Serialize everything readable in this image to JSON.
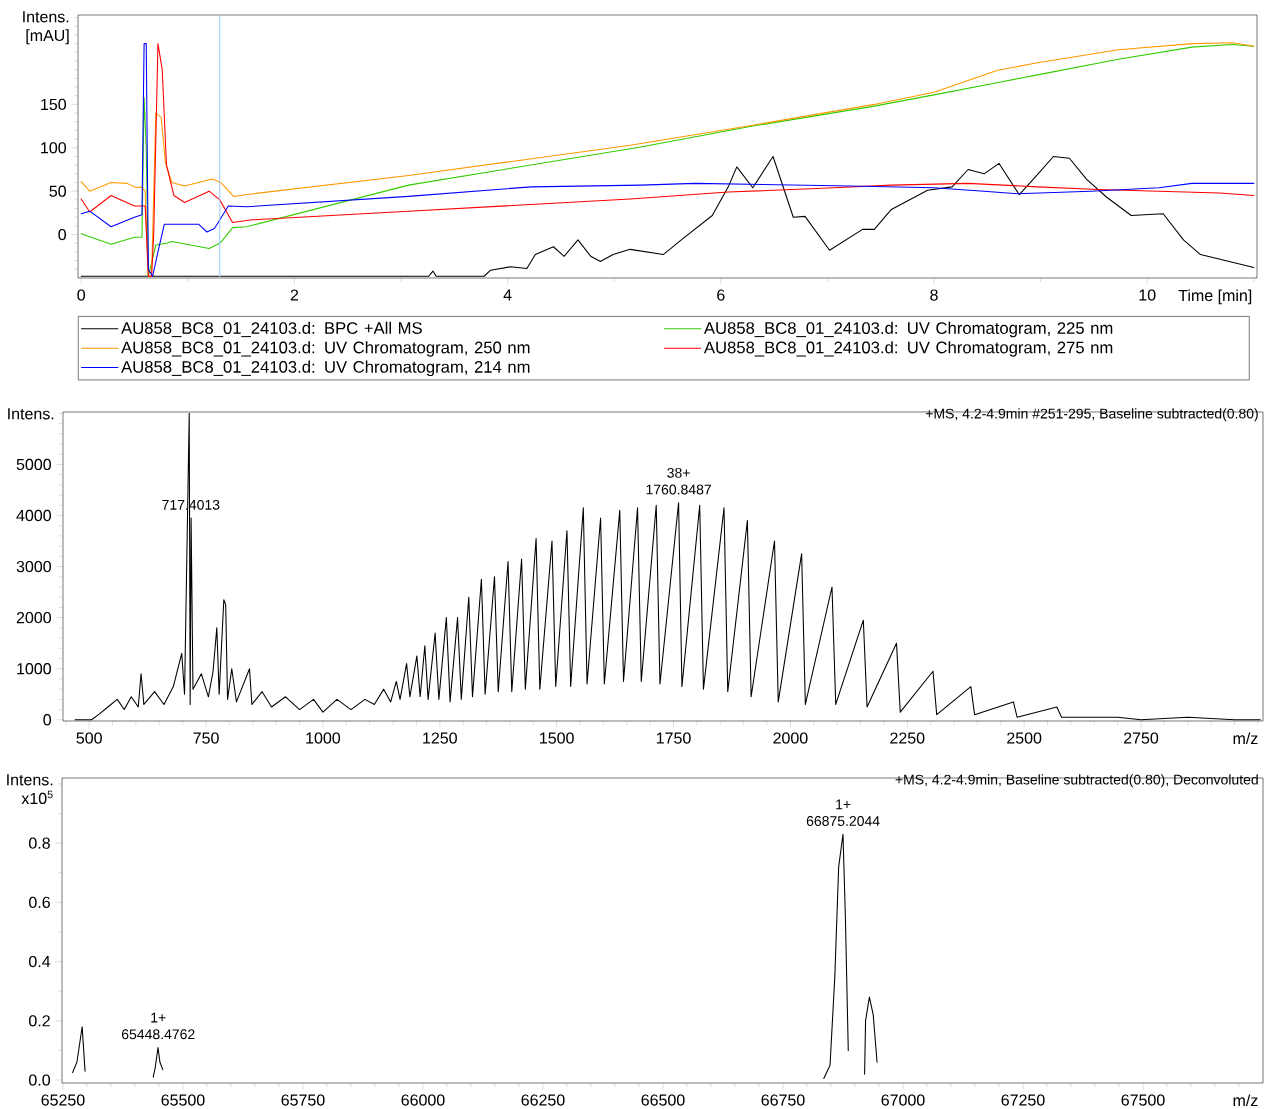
{
  "chart_data": [
    {
      "type": "line",
      "xlabel": "Time [min]",
      "ylabel": "Intens. [mAU]",
      "xlim": [
        -0.03,
        11.03
      ],
      "ylim": [
        -50,
        253
      ],
      "xticks": [
        0,
        {
          "value": 1,
          "label": null
        },
        2,
        {
          "value": 3,
          "label": null
        },
        4,
        {
          "value": 5,
          "label": null
        },
        6,
        {
          "value": 7,
          "label": null
        },
        8,
        {
          "value": 9,
          "label": null
        },
        10,
        {
          "value": 11,
          "label": null
        }
      ],
      "yticks": [
        {
          "value": -40,
          "label": null
        },
        {
          "value": -30,
          "label": null
        },
        {
          "value": -20,
          "label": null
        },
        {
          "value": -10,
          "label": null
        },
        0,
        {
          "value": 10,
          "label": null
        },
        {
          "value": 20,
          "label": null
        },
        {
          "value": 30,
          "label": null
        },
        {
          "value": 40,
          "label": null
        },
        50,
        {
          "value": 60,
          "label": null
        },
        {
          "value": 70,
          "label": null
        },
        {
          "value": 80,
          "label": null
        },
        {
          "value": 90,
          "label": null
        },
        100,
        {
          "value": 110,
          "label": null
        },
        {
          "value": 120,
          "label": null
        },
        {
          "value": 130,
          "label": null
        },
        {
          "value": 140,
          "label": null
        },
        150,
        {
          "value": 160,
          "label": null
        },
        {
          "value": 170,
          "label": null
        },
        {
          "value": 180,
          "label": null
        },
        {
          "value": 190,
          "label": null
        },
        {
          "value": 200,
          "label": null
        },
        {
          "value": 210,
          "label": null
        },
        {
          "value": 220,
          "label": null
        },
        {
          "value": 230,
          "label": null
        },
        {
          "value": 240,
          "label": null
        },
        {
          "value": 250,
          "label": null
        }
      ],
      "legend": "bottom",
      "ref_lines": [
        {
          "axis": "x",
          "value": 1.3,
          "color": "#99ccff"
        }
      ],
      "series": [
        {
          "name": "AU858_BC8_01_24103.d: BPC +All MS",
          "color": "#000000",
          "x": [
            0,
            3.26,
            3.3,
            3.33,
            3.78,
            3.84,
            4.03,
            4.18,
            4.26,
            4.43,
            4.53,
            4.66,
            4.78,
            4.87,
            4.99,
            5.15,
            5.46,
            5.65,
            5.92,
            6.07,
            6.15,
            6.3,
            6.49,
            6.68,
            6.79,
            7.02,
            7.33,
            7.44,
            7.6,
            7.94,
            8.17,
            8.32,
            8.47,
            8.61,
            8.8,
            8.97,
            9.12,
            9.27,
            9.43,
            9.62,
            9.85,
            10.15,
            10.34,
            10.5,
            11.0
          ],
          "values": [
            -48,
            -48,
            -42,
            -48,
            -48,
            -41,
            -37,
            -39,
            -23,
            -14,
            -25,
            -6,
            -25,
            -31,
            -23,
            -17,
            -23,
            -4,
            22,
            55,
            78,
            54,
            90,
            20,
            21,
            -18,
            6,
            6,
            29,
            51,
            55,
            75,
            70,
            82,
            46,
            69,
            90,
            88,
            64,
            43,
            22,
            24,
            -6,
            -23,
            -38
          ]
        },
        {
          "name": "AU858_BC8_01_24103.d: UV Chromatogram, 225 nm",
          "color": "#33cc00",
          "x": [
            0,
            0.28,
            0.5,
            0.57,
            0.59,
            0.61,
            0.63,
            0.7,
            0.8,
            0.85,
            1.2,
            1.3,
            1.35,
            1.42,
            1.55,
            3.07,
            5.25,
            6.3,
            7.44,
            8,
            8.59,
            8.97,
            9.73,
            10.42,
            10.8,
            11.0
          ],
          "values": [
            1,
            -11,
            -3,
            -3,
            158,
            100,
            -48,
            -12,
            -10,
            -8,
            -16,
            -10,
            -3,
            8,
            9,
            57,
            101,
            125,
            148,
            161,
            175,
            184,
            202,
            216,
            219,
            217
          ]
        },
        {
          "name": "AU858_BC8_01_24103.d: UV Chromatogram, 250 nm",
          "color": "#ff9900",
          "x": [
            0,
            0.08,
            0.28,
            0.43,
            0.52,
            0.56,
            0.6,
            0.63,
            0.66,
            0.7,
            0.75,
            0.79,
            0.85,
            0.97,
            1.23,
            1.31,
            1.43,
            1.54,
            3.07,
            5.15,
            6.3,
            7.44,
            8,
            8.59,
            8.97,
            9.73,
            10.42,
            10.8,
            11.0
          ],
          "values": [
            61,
            50,
            60,
            59,
            54,
            55,
            50,
            -48,
            -48,
            140,
            135,
            83,
            60,
            56,
            64,
            60,
            44,
            46,
            68,
            103,
            126,
            150,
            164,
            189,
            198,
            213,
            220,
            221,
            217
          ]
        },
        {
          "name": "AU858_BC8_01_24103.d: UV Chromatogram, 275 nm",
          "color": "#ff0000",
          "x": [
            0,
            0.08,
            0.28,
            0.5,
            0.6,
            0.63,
            0.66,
            0.68,
            0.72,
            0.76,
            0.8,
            0.87,
            0.97,
            1.2,
            1.3,
            1.42,
            1.6,
            3.07,
            5.15,
            6.07,
            7.06,
            7.6,
            8.32,
            8.97,
            9.54,
            10.68,
            11.0
          ],
          "values": [
            41,
            26,
            45,
            33,
            33,
            -48,
            -48,
            0,
            220,
            190,
            80,
            45,
            37,
            50,
            40,
            14,
            17,
            27,
            41,
            49,
            54,
            57,
            59,
            55,
            52,
            48,
            45
          ]
        },
        {
          "name": "AU858_BC8_01_24103.d: UV Chromatogram, 214 nm",
          "color": "#0000ff",
          "x": [
            0,
            0.08,
            0.28,
            0.5,
            0.57,
            0.59,
            0.61,
            0.63,
            0.67,
            0.72,
            0.78,
            1.1,
            1.18,
            1.25,
            1.38,
            1.55,
            3.07,
            4.22,
            5.25,
            5.76,
            7.21,
            8,
            8.47,
            8.78,
            9.47,
            10.11,
            10.42,
            11.0
          ],
          "values": [
            24,
            27,
            9,
            20,
            23,
            220,
            220,
            -40,
            -48,
            -20,
            12,
            12,
            3,
            7,
            33,
            32,
            44,
            55,
            57,
            59,
            56,
            54,
            50,
            47,
            50,
            54,
            59,
            59
          ]
        }
      ]
    },
    {
      "type": "line",
      "title": "+MS, 4.2-4.9min #251-295, Baseline subtracted(0.80)",
      "xlabel": "m/z",
      "ylabel": "Intens.",
      "xlim": [
        444,
        3011
      ],
      "ylim": [
        -24,
        6027
      ],
      "xticks": [
        {
          "value": 450,
          "label": null
        },
        500,
        {
          "value": 550,
          "label": null
        },
        {
          "value": 600,
          "label": null
        },
        {
          "value": 650,
          "label": null
        },
        {
          "value": 700,
          "label": null
        },
        750,
        {
          "value": 800,
          "label": null
        },
        {
          "value": 850,
          "label": null
        },
        {
          "value": 900,
          "label": null
        },
        {
          "value": 950,
          "label": null
        },
        1000,
        {
          "value": 1050,
          "label": null
        },
        {
          "value": 1100,
          "label": null
        },
        {
          "value": 1150,
          "label": null
        },
        {
          "value": 1200,
          "label": null
        },
        1250,
        {
          "value": 1300,
          "label": null
        },
        {
          "value": 1350,
          "label": null
        },
        {
          "value": 1400,
          "label": null
        },
        {
          "value": 1450,
          "label": null
        },
        1500,
        {
          "value": 1550,
          "label": null
        },
        {
          "value": 1600,
          "label": null
        },
        {
          "value": 1650,
          "label": null
        },
        {
          "value": 1700,
          "label": null
        },
        1750,
        {
          "value": 1800,
          "label": null
        },
        {
          "value": 1850,
          "label": null
        },
        {
          "value": 1900,
          "label": null
        },
        {
          "value": 1950,
          "label": null
        },
        2000,
        {
          "value": 2050,
          "label": null
        },
        {
          "value": 2100,
          "label": null
        },
        {
          "value": 2150,
          "label": null
        },
        {
          "value": 2200,
          "label": null
        },
        2250,
        {
          "value": 2300,
          "label": null
        },
        {
          "value": 2350,
          "label": null
        },
        {
          "value": 2400,
          "label": null
        },
        {
          "value": 2450,
          "label": null
        },
        2500,
        {
          "value": 2550,
          "label": null
        },
        {
          "value": 2600,
          "label": null
        },
        {
          "value": 2650,
          "label": null
        },
        {
          "value": 2700,
          "label": null
        },
        2750,
        {
          "value": 2800,
          "label": null
        },
        {
          "value": 2850,
          "label": null
        },
        {
          "value": 2900,
          "label": null
        },
        {
          "value": 2950,
          "label": null
        },
        {
          "value": 3000,
          "label": null
        }
      ],
      "yticks": [
        0,
        {
          "value": 200,
          "label": null
        },
        {
          "value": 400,
          "label": null
        },
        {
          "value": 600,
          "label": null
        },
        {
          "value": 800,
          "label": null
        },
        1000,
        {
          "value": 1200,
          "label": null
        },
        {
          "value": 1400,
          "label": null
        },
        {
          "value": 1600,
          "label": null
        },
        {
          "value": 1800,
          "label": null
        },
        2000,
        {
          "value": 2200,
          "label": null
        },
        {
          "value": 2400,
          "label": null
        },
        {
          "value": 2600,
          "label": null
        },
        {
          "value": 2800,
          "label": null
        },
        3000,
        {
          "value": 3200,
          "label": null
        },
        {
          "value": 3400,
          "label": null
        },
        {
          "value": 3600,
          "label": null
        },
        {
          "value": 3800,
          "label": null
        },
        4000,
        {
          "value": 4200,
          "label": null
        },
        {
          "value": 4400,
          "label": null
        },
        {
          "value": 4600,
          "label": null
        },
        {
          "value": 4800,
          "label": null
        },
        5000,
        {
          "value": 5200,
          "label": null
        },
        {
          "value": 5400,
          "label": null
        },
        {
          "value": 5600,
          "label": null
        },
        {
          "value": 5800,
          "label": null
        },
        {
          "value": 6000,
          "label": null
        }
      ],
      "annotations": [
        {
          "text": "717.4013",
          "x": 717.4013,
          "y": 3950
        },
        {
          "text": "38+ 1760.8487",
          "x": 1760.8487,
          "y": 4250
        }
      ],
      "series": [
        {
          "color": "#000000",
          "x": [
            470,
            505,
            520,
            540,
            560,
            575,
            590,
            605,
            611,
            617,
            640,
            660,
            680,
            698,
            704,
            714,
            716,
            718,
            722,
            740,
            755,
            765,
            773,
            778,
            788,
            792,
            796,
            805,
            815,
            843,
            848,
            870,
            890,
            920,
            950,
            980,
            1000,
            1030,
            1060,
            1090,
            1110,
            1130,
            1145,
            1157,
            1165,
            1179,
            1186,
            1201,
            1208,
            1218,
            1225,
            1240,
            1248,
            1264,
            1272,
            1288,
            1296,
            1312,
            1320,
            1339,
            1347,
            1367,
            1375,
            1396,
            1404,
            1425,
            1433,
            1456,
            1464,
            1490,
            1498,
            1522,
            1530,
            1557,
            1565,
            1594,
            1602,
            1635,
            1643,
            1673,
            1681,
            1713,
            1721,
            1760.8,
            1768,
            1806,
            1814,
            1858,
            1866,
            1908,
            1916,
            1966,
            1974,
            2024,
            2032,
            2089,
            2097,
            2156,
            2164,
            2227,
            2235,
            2305,
            2313,
            2386,
            2394,
            2477,
            2485,
            2570,
            2580,
            2700,
            2750,
            2850,
            2950,
            3005
          ],
          "values": [
            0,
            0,
            100,
            250,
            400,
            200,
            450,
            250,
            900,
            300,
            550,
            300,
            650,
            1300,
            500,
            6000,
            300,
            3950,
            600,
            900,
            450,
            950,
            1800,
            500,
            2350,
            2250,
            400,
            1000,
            350,
            1000,
            300,
            550,
            250,
            450,
            200,
            400,
            150,
            400,
            200,
            400,
            300,
            600,
            350,
            750,
            400,
            1100,
            450,
            1250,
            450,
            1450,
            400,
            1700,
            400,
            2000,
            350,
            2000,
            400,
            2400,
            450,
            2750,
            500,
            2800,
            550,
            3100,
            550,
            3150,
            600,
            3550,
            600,
            3500,
            650,
            3700,
            650,
            4150,
            700,
            3950,
            700,
            4100,
            750,
            4150,
            750,
            4200,
            700,
            4250,
            650,
            4200,
            600,
            4150,
            550,
            3900,
            450,
            3500,
            350,
            3250,
            300,
            2600,
            300,
            1950,
            250,
            1500,
            150,
            950,
            100,
            650,
            100,
            350,
            50,
            250,
            50,
            50,
            0,
            50,
            0,
            0
          ]
        }
      ]
    },
    {
      "type": "line",
      "title": "+MS, 4.2-4.9min, Baseline subtracted(0.80), Deconvoluted",
      "xlabel": "m/z",
      "ylabel": "Intens. x10$^{5}$",
      "xlim": [
        65248,
        67750
      ],
      "ylim": [
        -0.01,
        1.02
      ],
      "xticks": [
        65250,
        {
          "value": 65300,
          "label": null
        },
        {
          "value": 65350,
          "label": null
        },
        {
          "value": 65400,
          "label": null
        },
        {
          "value": 65450,
          "label": null
        },
        65500,
        {
          "value": 65550,
          "label": null
        },
        {
          "value": 65600,
          "label": null
        },
        {
          "value": 65650,
          "label": null
        },
        {
          "value": 65700,
          "label": null
        },
        65750,
        {
          "value": 65800,
          "label": null
        },
        {
          "value": 65850,
          "label": null
        },
        {
          "value": 65900,
          "label": null
        },
        {
          "value": 65950,
          "label": null
        },
        66000,
        {
          "value": 66050,
          "label": null
        },
        {
          "value": 66100,
          "label": null
        },
        {
          "value": 66150,
          "label": null
        },
        {
          "value": 66200,
          "label": null
        },
        66250,
        {
          "value": 66300,
          "label": null
        },
        {
          "value": 66350,
          "label": null
        },
        {
          "value": 66400,
          "label": null
        },
        {
          "value": 66450,
          "label": null
        },
        66500,
        {
          "value": 66550,
          "label": null
        },
        {
          "value": 66600,
          "label": null
        },
        {
          "value": 66650,
          "label": null
        },
        {
          "value": 66700,
          "label": null
        },
        66750,
        {
          "value": 66800,
          "label": null
        },
        {
          "value": 66850,
          "label": null
        },
        {
          "value": 66900,
          "label": null
        },
        {
          "value": 66950,
          "label": null
        },
        67000,
        {
          "value": 67050,
          "label": null
        },
        {
          "value": 67100,
          "label": null
        },
        {
          "value": 67150,
          "label": null
        },
        {
          "value": 67200,
          "label": null
        },
        67250,
        {
          "value": 67300,
          "label": null
        },
        {
          "value": 67350,
          "label": null
        },
        {
          "value": 67400,
          "label": null
        },
        {
          "value": 67450,
          "label": null
        },
        67500,
        {
          "value": 67550,
          "label": null
        },
        {
          "value": 67600,
          "label": null
        },
        {
          "value": 67650,
          "label": null
        },
        {
          "value": 67700,
          "label": null
        }
      ],
      "yticks": [
        {
          "value": 0,
          "label": "0.0"
        },
        {
          "value": 0.1,
          "label": null
        },
        0.2,
        {
          "value": 0.3,
          "label": null
        },
        0.4,
        {
          "value": 0.5,
          "label": null
        },
        0.6,
        {
          "value": 0.7,
          "label": null
        },
        0.8,
        {
          "value": 0.9,
          "label": null
        },
        {
          "value": 1.0,
          "label": null
        }
      ],
      "annotations": [
        {
          "text": "1+ 65448.4762",
          "x": 65448.4762,
          "y": 0.11
        },
        {
          "text": "1+ 66875.2044",
          "x": 66875.2044,
          "y": 0.83
        }
      ],
      "series": [
        {
          "color": "#000000",
          "x": [
            65270,
            65279,
            65290,
            65296,
            65370,
            65438,
            65442,
            65448,
            65452,
            65458,
            66150,
            66835,
            66848,
            66858,
            66866,
            66875,
            66880,
            66886,
            66905,
            66920,
            66922,
            66930,
            66938,
            66946
          ],
          "values": [
            0.025,
            0.06,
            0.18,
            0.03,
            null,
            0.01,
            0.04,
            0.11,
            0.06,
            0.035,
            null,
            0.005,
            0.05,
            0.35,
            0.72,
            0.83,
            0.55,
            0.1,
            null,
            0.02,
            0.2,
            0.28,
            0.22,
            0.06
          ]
        }
      ]
    }
  ]
}
